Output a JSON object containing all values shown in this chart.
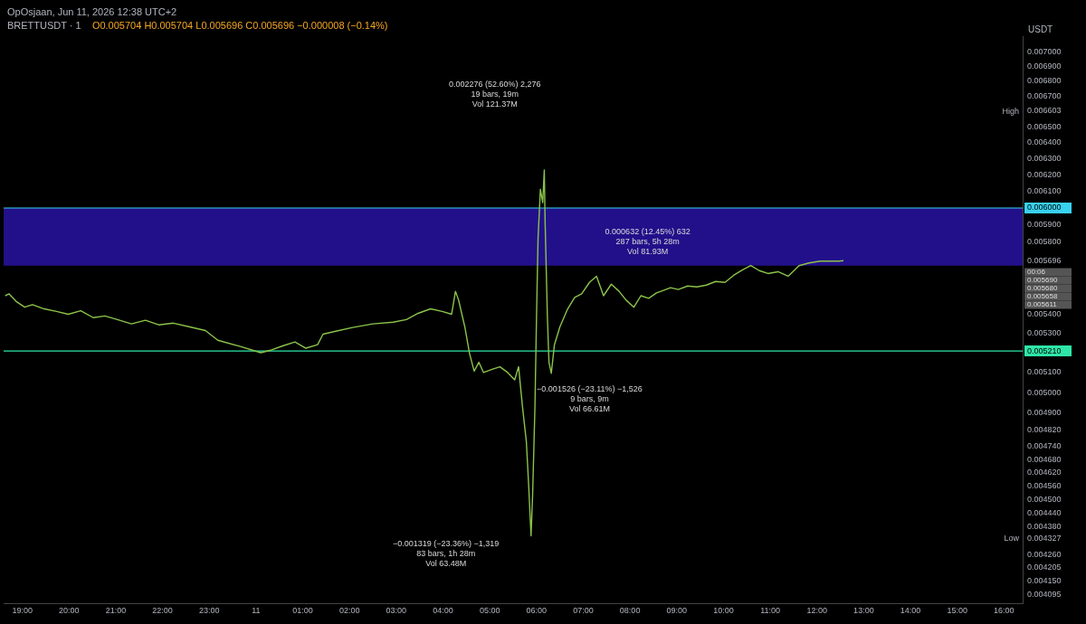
{
  "chart_data": {
    "type": "line",
    "title": "BRETTUSDT · 1",
    "subtitle": "O0.005704 H0.005704 L0.005696 C0.005696 −0.000008 (−0.14%)",
    "ylabel": "USDT",
    "log": "y",
    "legend": false,
    "marker": "none",
    "line_style": "solid",
    "xlim": [
      "--06-10T18:36",
      "--06-11T16:24"
    ],
    "xticks": [
      {
        "value": "--06-10T19:00",
        "label": "19:00"
      },
      {
        "value": "--06-10T20:00",
        "label": "20:00"
      },
      {
        "value": "--06-10T21:00",
        "label": "21:00"
      },
      {
        "value": "--06-10T22:00",
        "label": "22:00"
      },
      {
        "value": "--06-10T23:00",
        "label": "23:00"
      },
      {
        "value": "--06-11T00:00",
        "label": "11"
      },
      {
        "value": "--06-11T01:00",
        "label": "01:00"
      },
      {
        "value": "--06-11T02:00",
        "label": "02:00"
      },
      {
        "value": "--06-11T03:00",
        "label": "03:00"
      },
      {
        "value": "--06-11T04:00",
        "label": "04:00"
      },
      {
        "value": "--06-11T05:00",
        "label": "05:00"
      },
      {
        "value": "--06-11T06:00",
        "label": "06:00"
      },
      {
        "value": "--06-11T07:00",
        "label": "07:00"
      },
      {
        "value": "--06-11T08:00",
        "label": "08:00"
      },
      {
        "value": "--06-11T09:00",
        "label": "09:00"
      },
      {
        "value": "--06-11T10:00",
        "label": "10:00"
      },
      {
        "value": "--06-11T11:00",
        "label": "11:00"
      },
      {
        "value": "--06-11T12:00",
        "label": "12:00"
      },
      {
        "value": "--06-11T13:00",
        "label": "13:00"
      },
      {
        "value": "--06-11T14:00",
        "label": "14:00"
      },
      {
        "value": "--06-11T15:00",
        "label": "15:00"
      },
      {
        "value": "--06-11T16:00",
        "label": "16:00"
      }
    ],
    "ylim": [
      0.00406,
      0.00711
    ],
    "yticks": [
      {
        "value": 0.007,
        "label": "0.007000"
      },
      {
        "value": 0.0069,
        "label": "0.006900"
      },
      {
        "value": 0.0068,
        "label": "0.006800"
      },
      {
        "value": 0.0067,
        "label": "0.006700"
      },
      {
        "value": 0.006603,
        "label": "0.006603"
      },
      {
        "value": 0.0065,
        "label": "0.006500"
      },
      {
        "value": 0.0064,
        "label": "0.006400"
      },
      {
        "value": 0.0063,
        "label": "0.006300"
      },
      {
        "value": 0.0062,
        "label": "0.006200"
      },
      {
        "value": 0.0061,
        "label": "0.006100"
      },
      {
        "value": 0.0059,
        "label": "0.005900"
      },
      {
        "value": 0.0058,
        "label": "0.005800"
      },
      {
        "value": 0.005696,
        "label": "0.005696"
      },
      {
        "value": 0.0054,
        "label": "0.005400"
      },
      {
        "value": 0.0053,
        "label": "0.005300"
      },
      {
        "value": 0.0051,
        "label": "0.005100"
      },
      {
        "value": 0.005,
        "label": "0.005000"
      },
      {
        "value": 0.0049,
        "label": "0.004900"
      },
      {
        "value": 0.00482,
        "label": "0.004820"
      },
      {
        "value": 0.00474,
        "label": "0.004740"
      },
      {
        "value": 0.00468,
        "label": "0.004680"
      },
      {
        "value": 0.00462,
        "label": "0.004620"
      },
      {
        "value": 0.00456,
        "label": "0.004560"
      },
      {
        "value": 0.0045,
        "label": "0.004500"
      },
      {
        "value": 0.00444,
        "label": "0.004440"
      },
      {
        "value": 0.00438,
        "label": "0.004380"
      },
      {
        "value": 0.004327,
        "label": "0.004327"
      },
      {
        "value": 0.00426,
        "label": "0.004260"
      },
      {
        "value": 0.004205,
        "label": "0.004205"
      },
      {
        "value": 0.00415,
        "label": "0.004150"
      },
      {
        "value": 0.004095,
        "label": "0.004095"
      }
    ],
    "series": [
      {
        "color": "#8bc34a",
        "x": [
          "--06-10T18:38",
          "--06-10T18:43",
          "--06-10T18:53",
          "--06-10T19:03",
          "--06-10T19:13",
          "--06-10T19:28",
          "--06-10T19:44",
          "--06-10T19:59",
          "--06-10T20:15",
          "--06-10T20:31",
          "--06-10T20:46",
          "--06-10T21:02",
          "--06-10T21:20",
          "--06-10T21:38",
          "--06-10T21:55",
          "--06-10T22:14",
          "--06-10T22:35",
          "--06-10T22:55",
          "--06-10T23:11",
          "--06-10T23:40",
          "--06-11T00:06",
          "--06-11T00:20",
          "--06-11T00:35",
          "--06-11T00:50",
          "--06-11T01:04",
          "--06-11T01:19",
          "--06-11T01:26",
          "--06-11T01:41",
          "--06-11T02:04",
          "--06-11T02:30",
          "--06-11T02:56",
          "--06-11T03:13",
          "--06-11T03:28",
          "--06-11T03:44",
          "--06-11T03:59",
          "--06-11T04:11",
          "--06-11T04:16",
          "--06-11T04:20",
          "--06-11T04:28",
          "--06-11T04:34",
          "--06-11T04:40",
          "--06-11T04:46",
          "--06-11T04:52",
          "--06-11T05:03",
          "--06-11T05:13",
          "--06-11T05:23",
          "--06-11T05:32",
          "--06-11T05:37",
          "--06-11T05:42",
          "--06-11T05:47",
          "--06-11T05:50",
          "--06-11T05:53",
          "--06-11T05:55",
          "--06-11T05:58",
          "--06-11T06:00",
          "--06-11T06:02",
          "--06-11T06:05",
          "--06-11T06:08",
          "--06-11T06:10",
          "--06-11T06:11",
          "--06-11T06:14",
          "--06-11T06:16",
          "--06-11T06:19",
          "--06-11T06:23",
          "--06-11T06:30",
          "--06-11T06:40",
          "--06-11T06:49",
          "--06-11T06:58",
          "--06-11T07:08",
          "--06-11T07:17",
          "--06-11T07:22",
          "--06-11T07:26",
          "--06-11T07:36",
          "--06-11T07:46",
          "--06-11T07:55",
          "--06-11T08:05",
          "--06-11T08:14",
          "--06-11T08:24",
          "--06-11T08:34",
          "--06-11T08:43",
          "--06-11T08:52",
          "--06-11T09:02",
          "--06-11T09:14",
          "--06-11T09:26",
          "--06-11T09:38",
          "--06-11T09:50",
          "--06-11T10:02",
          "--06-11T10:13",
          "--06-11T10:24",
          "--06-11T10:35",
          "--06-11T10:46",
          "--06-11T10:57",
          "--06-11T11:10",
          "--06-11T11:23",
          "--06-11T11:37",
          "--06-11T11:50",
          "--06-11T12:04",
          "--06-11T12:16",
          "--06-11T12:28",
          "--06-11T12:34"
        ],
        "values": [
          0.005502,
          0.005512,
          0.005468,
          0.00544,
          0.005454,
          0.005431,
          0.005417,
          0.005402,
          0.005421,
          0.005384,
          0.005393,
          0.005374,
          0.005351,
          0.00537,
          0.005346,
          0.005355,
          0.005335,
          0.005316,
          0.005265,
          0.005233,
          0.005201,
          0.005215,
          0.005237,
          0.005256,
          0.005224,
          0.005242,
          0.005297,
          0.005311,
          0.005332,
          0.005351,
          0.00536,
          0.005374,
          0.005407,
          0.005431,
          0.005417,
          0.005402,
          0.005526,
          0.005478,
          0.005335,
          0.005197,
          0.005107,
          0.005152,
          0.0051,
          0.005116,
          0.005129,
          0.0051,
          0.005063,
          0.005129,
          0.004931,
          0.004762,
          0.004558,
          0.00434,
          0.004518,
          0.004931,
          0.005384,
          0.005824,
          0.006112,
          0.006032,
          0.00623,
          0.005927,
          0.005384,
          0.005152,
          0.005096,
          0.005242,
          0.005335,
          0.005431,
          0.005493,
          0.005512,
          0.005575,
          0.005609,
          0.00555,
          0.005502,
          0.005565,
          0.005526,
          0.005478,
          0.00544,
          0.005502,
          0.005488,
          0.005517,
          0.005531,
          0.005546,
          0.005536,
          0.005555,
          0.00555,
          0.00556,
          0.00558,
          0.005575,
          0.005614,
          0.005643,
          0.005668,
          0.00564,
          0.005624,
          0.005634,
          0.005609,
          0.005668,
          0.005683,
          0.005693,
          0.005693,
          0.005693,
          0.005696
        ]
      }
    ],
    "ref_lines": [
      {
        "axis": "y",
        "value": 0.006,
        "label": "0.006000",
        "color": "#38d1f0"
      },
      {
        "axis": "y",
        "value": 0.00521,
        "label": "0.005210",
        "color": "#2ee6a8"
      }
    ],
    "bands": [
      {
        "axis": "y",
        "from": 0.005668,
        "to": 0.006,
        "color": "#22108a"
      }
    ],
    "annotations": [
      "OpOsjaan, Jun 11, 2026 12:38 UTC+2",
      "0.002276 (52.60%) 2,276\n19 bars, 19m\nVol 121.37M",
      "0.000632 (12.45%) 632\n287 bars, 5h 28m\nVol 81.93M",
      "−0.001526 (−23.11%) −1,526\n9 bars, 9m\nVol 66.61M",
      "−0.001319 (−23.36%) −1,319\n83 bars, 1h 28m\nVol 63.48M",
      "High",
      "Low",
      "00:06",
      "0.005690",
      "0.005680",
      "0.005658",
      "0.005611"
    ]
  }
}
